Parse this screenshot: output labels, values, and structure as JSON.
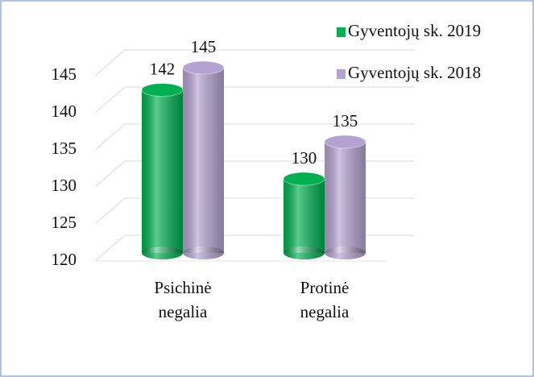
{
  "chart_data": {
    "type": "cylinder-bar",
    "categories": [
      "Psichinė negalia",
      "Protinė negalia"
    ],
    "series": [
      {
        "name": "Gyventojų sk. 2019",
        "color": "#00b050",
        "values": [
          142,
          130
        ]
      },
      {
        "name": "Gyventojų sk. 2018",
        "color": "#b4a2d0",
        "values": [
          145,
          135
        ]
      }
    ],
    "ylim": [
      120,
      145
    ],
    "yticks": [
      120,
      125,
      130,
      135,
      140,
      145
    ],
    "grid": true,
    "legend": "top-right"
  }
}
